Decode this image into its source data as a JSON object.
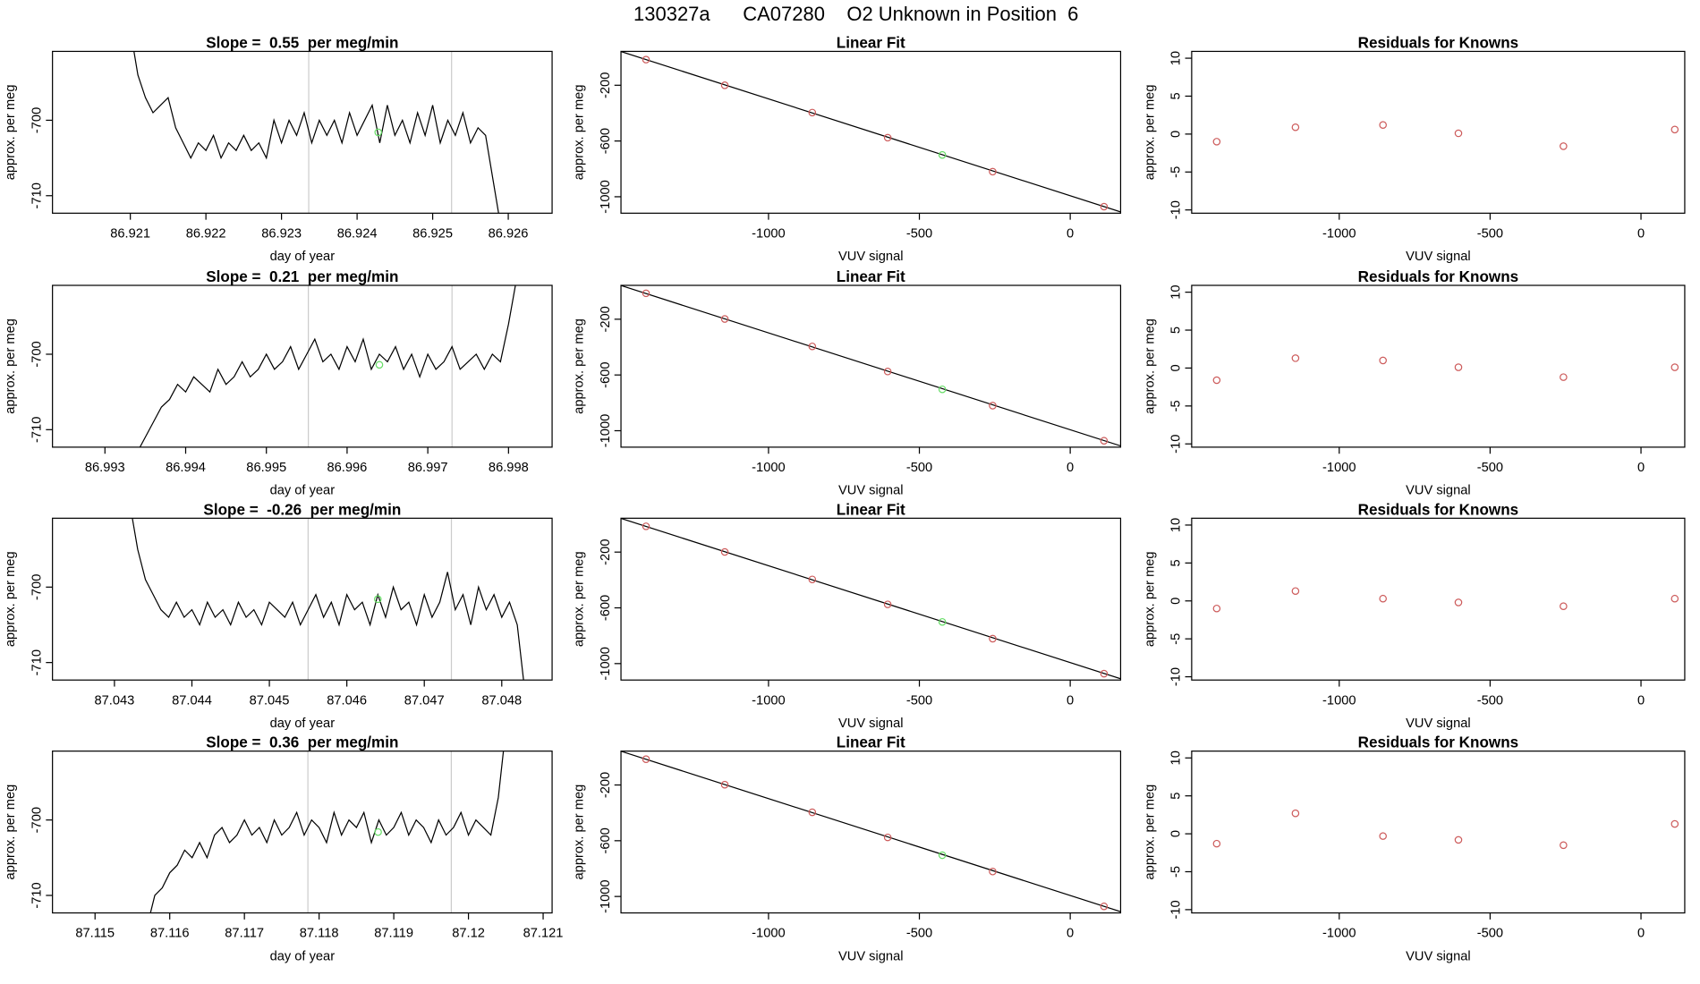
{
  "title": "130327a      CA07280    O2 Unknown in Position  6",
  "chart_data": [
    {
      "type": "line",
      "title": "Slope =  0.55  per meg/min",
      "xlabel": "day of year",
      "ylabel": "approx. per meg",
      "color": "#000000",
      "x": [
        86.921,
        86.9211,
        86.9212,
        86.9213,
        86.9214,
        86.9215,
        86.9216,
        86.9217,
        86.9218,
        86.9219,
        86.922,
        86.9221,
        86.9222,
        86.9223,
        86.9224,
        86.9225,
        86.9226,
        86.9227,
        86.9228,
        86.9229,
        86.923,
        86.9231,
        86.9232,
        86.9233,
        86.9234,
        86.9235,
        86.9236,
        86.9237,
        86.9238,
        86.9239,
        86.924,
        86.9241,
        86.9242,
        86.9243,
        86.9244,
        86.9245,
        86.9246,
        86.9247,
        86.9248,
        86.9249,
        86.925,
        86.9251,
        86.9252,
        86.9253,
        86.9254,
        86.9255,
        86.9256,
        86.9257,
        86.9258,
        86.9259
      ],
      "values": [
        -688,
        -694,
        -697,
        -699,
        -698,
        -697,
        -701,
        -703,
        -705,
        -703,
        -704,
        -702,
        -705,
        -703,
        -704,
        -702,
        -704,
        -703,
        -705,
        -700,
        -703,
        -700,
        -702,
        -699,
        -703,
        -700,
        -702,
        -700,
        -703,
        -699,
        -702,
        -700,
        -698,
        -703,
        -698,
        -702,
        -700,
        -703,
        -699,
        -702,
        -698,
        -703,
        -700,
        -702,
        -699,
        -703,
        -701,
        -702,
        -708,
        -714
      ],
      "highlight": {
        "x": 86.92428,
        "y": -701.6,
        "color": "#66dd66"
      },
      "vlines": [
        86.92336,
        86.92525
      ],
      "vline_color": "#cccccc",
      "xlim": [
        86.91997,
        86.92658
      ],
      "ylim": [
        -712.32,
        -690.87
      ],
      "xticks": [
        86.921,
        86.922,
        86.923,
        86.924,
        86.925,
        86.926
      ],
      "yticks": [
        -710,
        -700
      ]
    },
    {
      "type": "fit",
      "title": "Linear Fit",
      "xlabel": "VUV signal",
      "ylabel": "approx. per meg",
      "color": "#cd5c5c",
      "x": [
        -1406,
        -1145,
        -855,
        -605,
        -257,
        112
      ],
      "values": [
        -16,
        -200,
        -396,
        -576,
        -820,
        -1071
      ],
      "highlight": {
        "x": -424,
        "y": -700,
        "color": "#66dd66"
      },
      "fit_line": {
        "x": [
          -1489,
          167
        ],
        "y": [
          42,
          -1109
        ]
      },
      "xlim": [
        -1489,
        167
      ],
      "ylim": [
        -1118,
        43
      ],
      "xticks": [
        -1000,
        -500,
        0
      ],
      "yticks": [
        -1000,
        -600,
        -200
      ]
    },
    {
      "type": "scatter",
      "title": "Residuals for Knowns",
      "xlabel": "VUV signal",
      "ylabel": "approx. per meg",
      "color": "#cd5c5c",
      "x": [
        -1406,
        -1145,
        -855,
        -605,
        -257,
        112
      ],
      "values": [
        -1.0,
        0.9,
        1.2,
        0.1,
        -1.6,
        0.6
      ],
      "xlim": [
        -1489,
        145
      ],
      "ylim": [
        -10.43,
        10.9
      ],
      "xticks": [
        -1000,
        -500,
        0
      ],
      "yticks": [
        -10,
        -5,
        0,
        5,
        10
      ]
    },
    {
      "type": "line",
      "title": "Slope =  0.21  per meg/min",
      "xlabel": "day of year",
      "ylabel": "approx. per meg",
      "color": "#000000",
      "x": [
        86.9934,
        86.9935,
        86.9936,
        86.9937,
        86.9938,
        86.9939,
        86.994,
        86.9941,
        86.9942,
        86.9943,
        86.9944,
        86.9945,
        86.9946,
        86.9947,
        86.9948,
        86.9949,
        86.995,
        86.9951,
        86.9952,
        86.9953,
        86.9954,
        86.9955,
        86.9956,
        86.9957,
        86.9958,
        86.9959,
        86.996,
        86.9961,
        86.9962,
        86.9963,
        86.9964,
        86.9965,
        86.9966,
        86.9967,
        86.9968,
        86.9969,
        86.997,
        86.9971,
        86.9972,
        86.9973,
        86.9974,
        86.9975,
        86.9976,
        86.9977,
        86.9978,
        86.9979,
        86.998,
        86.9981
      ],
      "values": [
        -713,
        -711,
        -709,
        -707,
        -706,
        -704,
        -705,
        -703,
        -704,
        -705,
        -702,
        -704,
        -703,
        -701,
        -703,
        -702,
        -700,
        -702,
        -701,
        -699,
        -702,
        -700,
        -698,
        -701,
        -700,
        -702,
        -699,
        -701,
        -698,
        -702,
        -700,
        -701,
        -699,
        -702,
        -700,
        -703,
        -700,
        -702,
        -701,
        -699,
        -702,
        -701,
        -700,
        -702,
        -700,
        -701,
        -696,
        -690
      ],
      "highlight": {
        "x": 86.9964,
        "y": -701.4,
        "color": "#66dd66"
      },
      "vlines": [
        86.99552,
        86.9973
      ],
      "vline_color": "#cccccc",
      "xlim": [
        86.99235,
        86.99854
      ],
      "ylim": [
        -712.32,
        -690.87
      ],
      "xticks": [
        86.993,
        86.994,
        86.995,
        86.996,
        86.997,
        86.998
      ],
      "yticks": [
        -710,
        -700
      ]
    },
    {
      "type": "fit",
      "title": "Linear Fit",
      "xlabel": "VUV signal",
      "ylabel": "approx. per meg",
      "color": "#cd5c5c",
      "x": [
        -1406,
        -1145,
        -855,
        -605,
        -257,
        112
      ],
      "values": [
        -14,
        -198,
        -395,
        -575,
        -820,
        -1072
      ],
      "highlight": {
        "x": -424,
        "y": -703,
        "color": "#66dd66"
      },
      "fit_line": {
        "x": [
          -1489,
          167
        ],
        "y": [
          42,
          -1109
        ]
      },
      "xlim": [
        -1489,
        167
      ],
      "ylim": [
        -1118,
        43
      ],
      "xticks": [
        -1000,
        -500,
        0
      ],
      "yticks": [
        -1000,
        -600,
        -200
      ]
    },
    {
      "type": "scatter",
      "title": "Residuals for Knowns",
      "xlabel": "VUV signal",
      "ylabel": "approx. per meg",
      "color": "#cd5c5c",
      "x": [
        -1406,
        -1145,
        -855,
        -605,
        -257,
        112
      ],
      "values": [
        -1.6,
        1.3,
        1.0,
        0.1,
        -1.2,
        0.1
      ],
      "xlim": [
        -1489,
        145
      ],
      "ylim": [
        -10.43,
        10.9
      ],
      "xticks": [
        -1000,
        -500,
        0
      ],
      "yticks": [
        -10,
        -5,
        0,
        5,
        10
      ]
    },
    {
      "type": "line",
      "title": "Slope =  -0.26  per meg/min",
      "xlabel": "day of year",
      "ylabel": "approx. per meg",
      "color": "#000000",
      "x": [
        87.0432,
        87.0433,
        87.0434,
        87.0435,
        87.0436,
        87.0437,
        87.0438,
        87.0439,
        87.044,
        87.0441,
        87.0442,
        87.0443,
        87.0444,
        87.0445,
        87.0446,
        87.0447,
        87.0448,
        87.0449,
        87.045,
        87.0451,
        87.0452,
        87.0453,
        87.0454,
        87.0455,
        87.0456,
        87.0457,
        87.0458,
        87.0459,
        87.046,
        87.0461,
        87.0462,
        87.0463,
        87.0464,
        87.0465,
        87.0466,
        87.0467,
        87.0468,
        87.0469,
        87.047,
        87.0471,
        87.0472,
        87.0473,
        87.0474,
        87.0475,
        87.0476,
        87.0477,
        87.0478,
        87.0479,
        87.048,
        87.0481,
        87.0482,
        87.0483
      ],
      "values": [
        -689,
        -695,
        -699,
        -701,
        -703,
        -704,
        -702,
        -704,
        -703,
        -705,
        -702,
        -704,
        -703,
        -705,
        -702,
        -704,
        -703,
        -705,
        -702,
        -703,
        -704,
        -702,
        -705,
        -703,
        -701,
        -704,
        -702,
        -705,
        -701,
        -703,
        -702,
        -705,
        -701,
        -704,
        -700,
        -703,
        -702,
        -705,
        -701,
        -704,
        -702,
        -698,
        -703,
        -701,
        -705,
        -700,
        -703,
        -701,
        -704,
        -702,
        -705,
        -714
      ],
      "highlight": {
        "x": 87.0464,
        "y": -701.6,
        "color": "#66dd66"
      },
      "vlines": [
        87.0455,
        87.04735
      ],
      "vline_color": "#cccccc",
      "xlim": [
        87.0422,
        87.04865
      ],
      "ylim": [
        -712.32,
        -690.87
      ],
      "xticks": [
        87.043,
        87.044,
        87.045,
        87.046,
        87.047,
        87.048
      ],
      "yticks": [
        -710,
        -700
      ]
    },
    {
      "type": "fit",
      "title": "Linear Fit",
      "xlabel": "VUV signal",
      "ylabel": "approx. per meg",
      "color": "#cd5c5c",
      "x": [
        -1406,
        -1145,
        -855,
        -605,
        -257,
        112
      ],
      "values": [
        -15,
        -199,
        -396,
        -575,
        -821,
        -1072
      ],
      "highlight": {
        "x": -424,
        "y": -701,
        "color": "#66dd66"
      },
      "fit_line": {
        "x": [
          -1489,
          167
        ],
        "y": [
          42,
          -1109
        ]
      },
      "xlim": [
        -1489,
        167
      ],
      "ylim": [
        -1118,
        43
      ],
      "xticks": [
        -1000,
        -500,
        0
      ],
      "yticks": [
        -1000,
        -600,
        -200
      ]
    },
    {
      "type": "scatter",
      "title": "Residuals for Knowns",
      "xlabel": "VUV signal",
      "ylabel": "approx. per meg",
      "color": "#cd5c5c",
      "x": [
        -1406,
        -1145,
        -855,
        -605,
        -257,
        112
      ],
      "values": [
        -1.0,
        1.3,
        0.3,
        -0.2,
        -0.7,
        0.3
      ],
      "xlim": [
        -1489,
        145
      ],
      "ylim": [
        -10.43,
        10.9
      ],
      "xticks": [
        -1000,
        -500,
        0
      ],
      "yticks": [
        -10,
        -5,
        0,
        5,
        10
      ]
    },
    {
      "type": "line",
      "title": "Slope =  0.36  per meg/min",
      "xlabel": "day of year",
      "ylabel": "approx. per meg",
      "color": "#000000",
      "x": [
        87.1157,
        87.1158,
        87.1159,
        87.116,
        87.1161,
        87.1162,
        87.1163,
        87.1164,
        87.1165,
        87.1166,
        87.1167,
        87.1168,
        87.1169,
        87.117,
        87.1171,
        87.1172,
        87.1173,
        87.1174,
        87.1175,
        87.1176,
        87.1177,
        87.1178,
        87.1179,
        87.118,
        87.1181,
        87.1182,
        87.1183,
        87.1184,
        87.1185,
        87.1186,
        87.1187,
        87.1188,
        87.1189,
        87.119,
        87.1191,
        87.1192,
        87.1193,
        87.1194,
        87.1195,
        87.1196,
        87.1197,
        87.1198,
        87.1199,
        87.12,
        87.1201,
        87.1202,
        87.1203,
        87.1204,
        87.1205
      ],
      "values": [
        -714,
        -710,
        -709,
        -707,
        -706,
        -704,
        -705,
        -703,
        -705,
        -702,
        -701,
        -703,
        -702,
        -700,
        -702,
        -701,
        -703,
        -700,
        -702,
        -701,
        -699,
        -702,
        -700,
        -701,
        -703,
        -699,
        -702,
        -700,
        -701,
        -699,
        -703,
        -700,
        -702,
        -701,
        -699,
        -702,
        -700,
        -701,
        -703,
        -700,
        -702,
        -701,
        -699,
        -702,
        -700,
        -701,
        -702,
        -697,
        -688
      ],
      "highlight": {
        "x": 87.11879,
        "y": -701.6,
        "color": "#66dd66"
      },
      "vlines": [
        87.11785,
        87.11977
      ],
      "vline_color": "#cccccc",
      "xlim": [
        87.11443,
        87.12112
      ],
      "ylim": [
        -712.32,
        -690.87
      ],
      "xticks": [
        87.115,
        87.116,
        87.117,
        87.118,
        87.119,
        87.12,
        87.121
      ],
      "yticks": [
        -710,
        -700
      ]
    },
    {
      "type": "fit",
      "title": "Linear Fit",
      "xlabel": "VUV signal",
      "ylabel": "approx. per meg",
      "color": "#cd5c5c",
      "x": [
        -1406,
        -1145,
        -855,
        -605,
        -257,
        112
      ],
      "values": [
        -15,
        -198,
        -396,
        -576,
        -821,
        -1071
      ],
      "highlight": {
        "x": -424,
        "y": -704,
        "color": "#66dd66"
      },
      "fit_line": {
        "x": [
          -1489,
          167
        ],
        "y": [
          42,
          -1109
        ]
      },
      "xlim": [
        -1489,
        167
      ],
      "ylim": [
        -1118,
        43
      ],
      "xticks": [
        -1000,
        -500,
        0
      ],
      "yticks": [
        -1000,
        -600,
        -200
      ]
    },
    {
      "type": "scatter",
      "title": "Residuals for Knowns",
      "xlabel": "VUV signal",
      "ylabel": "approx. per meg",
      "color": "#cd5c5c",
      "x": [
        -1406,
        -1145,
        -855,
        -605,
        -257,
        112
      ],
      "values": [
        -1.3,
        2.7,
        -0.3,
        -0.8,
        -1.5,
        1.3
      ],
      "xlim": [
        -1489,
        145
      ],
      "ylim": [
        -10.43,
        10.9
      ],
      "xticks": [
        -1000,
        -500,
        0
      ],
      "yticks": [
        -10,
        -5,
        0,
        5,
        10
      ]
    }
  ]
}
